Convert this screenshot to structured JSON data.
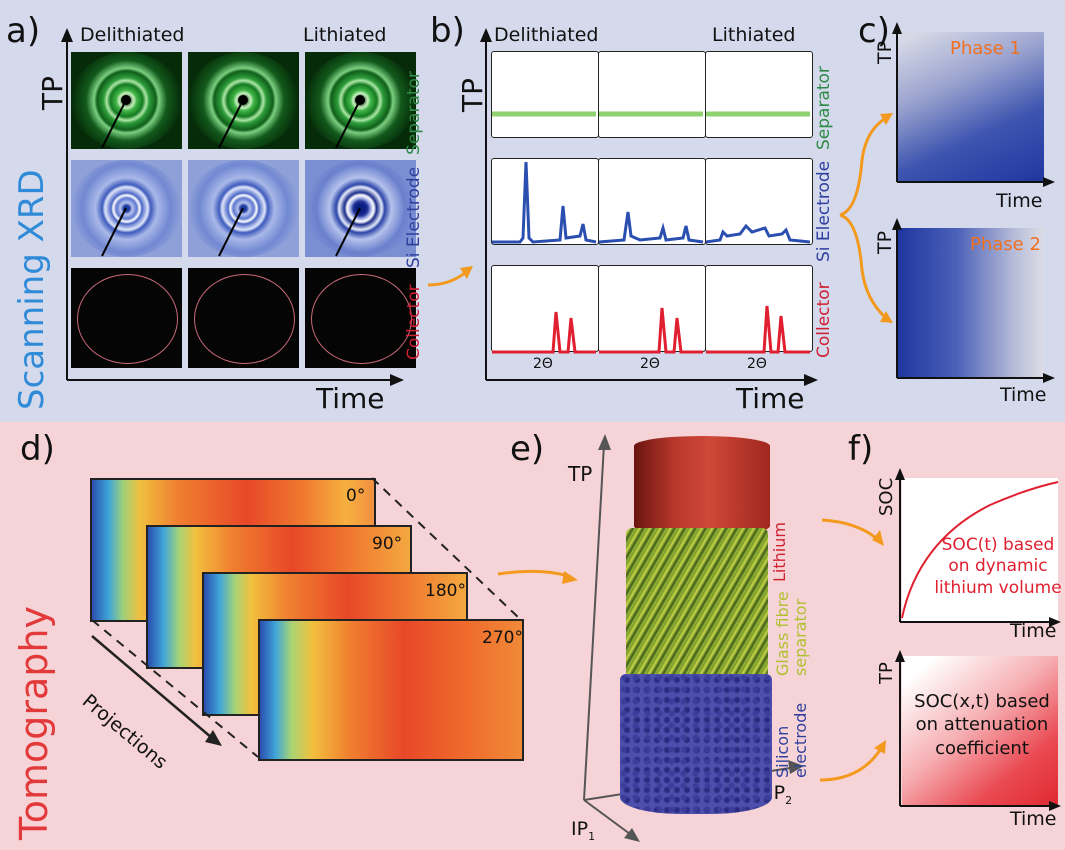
{
  "panels": {
    "a": "a)",
    "b": "b)",
    "c": "c)",
    "d": "d)",
    "e": "e)",
    "f": "f)"
  },
  "a": {
    "col_left": "Delithiated",
    "col_right": "Lithiated",
    "y_axis": "TP",
    "x_axis": "Time",
    "rows": [
      "Separator",
      "Si Electrode",
      "Collector"
    ],
    "side_label": "Scanning XRD"
  },
  "b": {
    "col_left": "Delithiated",
    "col_right": "Lithiated",
    "y_axis": "TP",
    "x_axis": "Time",
    "rows": [
      "Separator",
      "Si Electrode",
      "Collector"
    ],
    "two_theta": "2Θ"
  },
  "c": {
    "phase1": "Phase 1",
    "phase2": "Phase 2",
    "y_axis": "TP",
    "x_axis": "Time"
  },
  "d": {
    "angles": [
      "0°",
      "90°",
      "180°",
      "270°"
    ],
    "projections": "Projections",
    "side_label": "Tomography"
  },
  "e": {
    "y_axis": "TP",
    "ip1": "IP",
    "ip1_sub": "1",
    "ip2": "IP",
    "ip2_sub": "2",
    "layers": [
      "Lithium",
      "Glass fibre separator",
      "Silicon electrode"
    ],
    "separator_l1": "Glass fibre",
    "separator_l2": "separator",
    "silicon_l1": "Silicon",
    "silicon_l2": "electrode"
  },
  "f": {
    "top": {
      "y_axis": "SOC",
      "x_axis": "Time",
      "text": [
        "SOC(t) based",
        "on dynamic",
        "lithium volume"
      ]
    },
    "bottom": {
      "y_axis": "TP",
      "x_axis": "Time",
      "text": [
        "SOC(x,t) based",
        "on attenuation",
        "coefficient"
      ]
    }
  },
  "colors": {
    "top_bg": "#d4d9ec",
    "bottom_bg": "#f6d3d7",
    "arrow": "#f39a1e",
    "separator": "#2e8b45",
    "electrode": "#2e3f9e",
    "collector": "#d02030",
    "phase": "#f07020",
    "tomo": "#e23a3a"
  }
}
